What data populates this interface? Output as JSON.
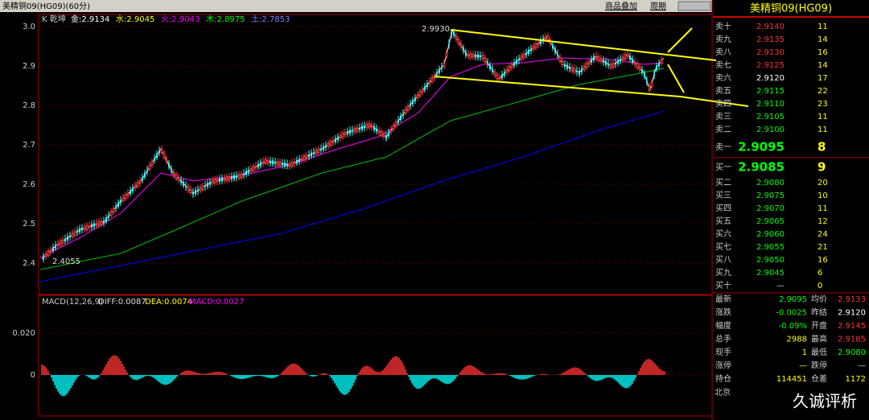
{
  "header": {
    "title": "美精铜09(HG09)(60分)",
    "links": [
      "商品叠加",
      "周期"
    ]
  },
  "chart": {
    "indicator": "K 乾坤",
    "ma": [
      {
        "name": "金:2.9134",
        "color": "#ffffff"
      },
      {
        "name": "水:2.9045",
        "color": "#ffff00"
      },
      {
        "name": "火:2.9043",
        "color": "#ff00ff"
      },
      {
        "name": "木:2.8975",
        "color": "#00ff00"
      },
      {
        "name": "土:2.7853",
        "color": "#8080ff"
      }
    ],
    "y_ticks": [
      "3.0",
      "2.9",
      "2.8",
      "2.7",
      "2.6",
      "2.5",
      "2.4"
    ],
    "high_label": "2.9930",
    "low_label": "2.4055"
  },
  "macd": {
    "title": "MACD(12,26,9)",
    "diff": "DIFF:0.0087",
    "dea": "DEA:0.0074",
    "macd": "MACD:0.0027",
    "y_ticks": [
      "0.020",
      "0"
    ]
  },
  "quote": {
    "title": "美精铜09(HG09)",
    "prev_settle": "2.9120",
    "asks": [
      [
        "卖十",
        "2.9140",
        "11"
      ],
      [
        "卖九",
        "2.9135",
        "14"
      ],
      [
        "卖八",
        "2.9130",
        "16"
      ],
      [
        "卖七",
        "2.9125",
        "14"
      ],
      [
        "卖六",
        "2.9120",
        "17"
      ],
      [
        "卖五",
        "2.9115",
        "22"
      ],
      [
        "卖四",
        "2.9110",
        "23"
      ],
      [
        "卖三",
        "2.9105",
        "11"
      ],
      [
        "卖二",
        "2.9100",
        "11"
      ],
      [
        "卖一",
        "2.9095",
        "8"
      ]
    ],
    "bids": [
      [
        "买一",
        "2.9085",
        "9"
      ],
      [
        "买二",
        "2.9080",
        "20"
      ],
      [
        "买三",
        "2.9075",
        "10"
      ],
      [
        "买四",
        "2.9070",
        "11"
      ],
      [
        "买五",
        "2.9065",
        "12"
      ],
      [
        "买六",
        "2.9060",
        "24"
      ],
      [
        "买七",
        "2.9055",
        "21"
      ],
      [
        "买八",
        "2.9050",
        "16"
      ],
      [
        "买九",
        "2.9045",
        "6"
      ],
      [
        "买十",
        "—",
        "0"
      ]
    ],
    "stats": [
      [
        "最新",
        "2.9095",
        "均价",
        "2.9133"
      ],
      [
        "涨跌",
        "-0.0025",
        "昨结",
        "2.9120"
      ],
      [
        "幅度",
        "-0.09%",
        "开盘",
        "2.9145"
      ],
      [
        "总手",
        "2988",
        "最高",
        "2.9185"
      ],
      [
        "现手",
        "1",
        "最低",
        "2.9080"
      ],
      [
        "涨停",
        "—",
        "跌停",
        "—"
      ],
      [
        "持仓",
        "114451",
        "仓差",
        "1172"
      ]
    ]
  },
  "footer": {
    "city": "北京",
    "watermark": "久诚评析"
  }
}
